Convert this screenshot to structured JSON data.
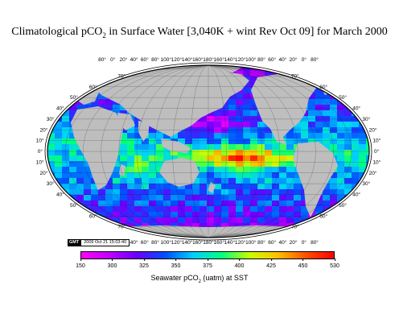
{
  "title": {
    "prefix": "Climatological pCO",
    "sub": "2",
    "suffix": " in Surface Water [3,040K + wint Rev Oct 09] for March 2000"
  },
  "map": {
    "projection": "global elliptical",
    "longitude_labels": [
      "80°",
      "0°",
      "20°",
      "40°",
      "60°",
      "80°",
      "100°",
      "120°",
      "140°",
      "160°",
      "180°",
      "160°",
      "140°",
      "120°",
      "100°",
      "80°",
      "60°",
      "40°",
      "20°",
      "0°",
      "80°"
    ],
    "latitude_labels_left": [
      "70°",
      "60°",
      "50°",
      "40°",
      "30°",
      "20°",
      "10°",
      "0°",
      "10°",
      "20°",
      "30°",
      "40°",
      "50°",
      "60°",
      "70°"
    ],
    "latitude_labels_right": [
      "70°",
      "60°",
      "50°",
      "40°",
      "30°",
      "20°",
      "10°",
      "0°",
      "10°",
      "20°",
      "30°",
      "40°",
      "50°",
      "60°",
      "70°"
    ],
    "land_color": "#bebebe",
    "ocean_field": "gridded pCO2 cells colored by value"
  },
  "stamp": {
    "logo": "GMT",
    "timestamp": "2009 Oct 21 15:03:40"
  },
  "colorbar": {
    "min": 150,
    "max": 530,
    "ticks": [
      "150",
      "300",
      "325",
      "350",
      "375",
      "400",
      "425",
      "450",
      "530"
    ],
    "colors": [
      "#ff00ff",
      "#c000ff",
      "#6a00ff",
      "#0050ff",
      "#00d0ff",
      "#00ff80",
      "#c8ff00",
      "#ffc000",
      "#ff5000",
      "#ff0000"
    ],
    "label_prefix": "Seawater  pCO",
    "label_sub": "2",
    "label_suffix": " (uatm) at SST"
  }
}
